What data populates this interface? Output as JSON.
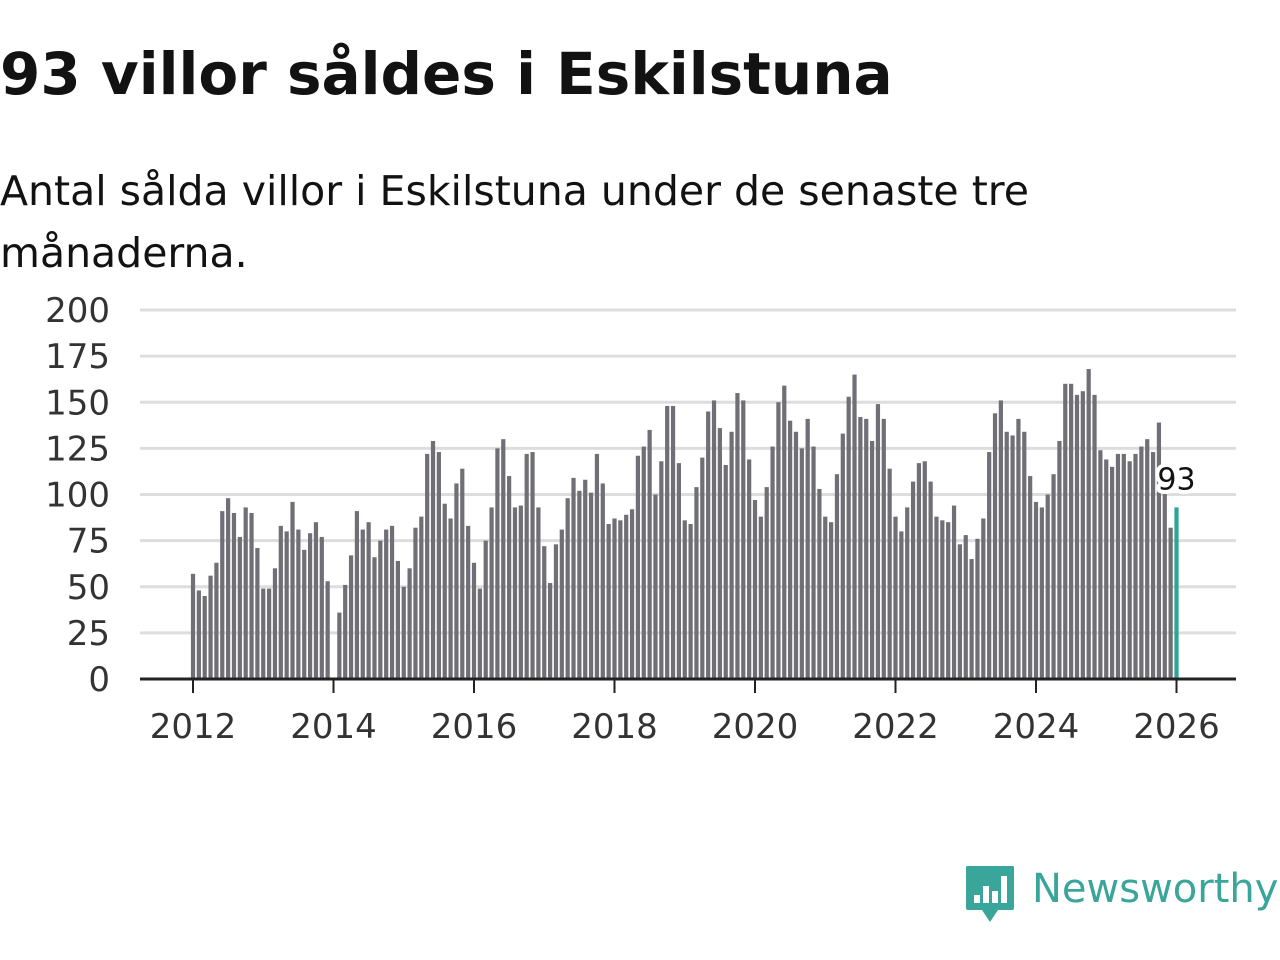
{
  "title": "93 villor såldes i Eskilstuna",
  "subtitle": "Antal sålda villor i Eskilstuna under de senaste tre månaderna.",
  "brand": {
    "name": "Newsworthy",
    "icon": "bar-chart-speech-bubble-icon",
    "color": "#3aa59a"
  },
  "colors": {
    "bar": "#706f75",
    "highlight": "#2ea497",
    "grid": "#dddddd",
    "axis": "#222222"
  },
  "chart_data": {
    "type": "bar",
    "title": "93 villor såldes i Eskilstuna",
    "subtitle": "Antal sålda villor i Eskilstuna under de senaste tre månaderna.",
    "xlabel": "",
    "ylabel": "",
    "start": "2012-01",
    "frequency": "monthly",
    "ylim": [
      0,
      200
    ],
    "yticks": [
      "0",
      "25",
      "50",
      "75",
      "100",
      "125",
      "150",
      "175",
      "200"
    ],
    "xticks": [
      "2012",
      "2014",
      "2016",
      "2018",
      "2020",
      "2022",
      "2024",
      "2026"
    ],
    "grid": true,
    "highlight": {
      "label": "93",
      "value": 93,
      "period": "2026-01"
    },
    "values": [
      57,
      48,
      45,
      56,
      63,
      91,
      98,
      90,
      77,
      93,
      90,
      71,
      49,
      49,
      60,
      83,
      80,
      96,
      81,
      70,
      79,
      85,
      77,
      53,
      0,
      36,
      51,
      67,
      91,
      81,
      85,
      66,
      75,
      81,
      83,
      64,
      50,
      60,
      82,
      88,
      122,
      129,
      123,
      95,
      87,
      106,
      114,
      83,
      63,
      49,
      75,
      93,
      125,
      130,
      110,
      93,
      94,
      122,
      123,
      93,
      72,
      52,
      73,
      81,
      98,
      109,
      102,
      108,
      101,
      122,
      106,
      84,
      87,
      86,
      89,
      92,
      121,
      126,
      135,
      100,
      118,
      148,
      148,
      117,
      86,
      84,
      104,
      120,
      145,
      151,
      136,
      116,
      134,
      155,
      151,
      119,
      97,
      88,
      104,
      126,
      150,
      159,
      140,
      134,
      125,
      141,
      126,
      103,
      88,
      85,
      111,
      133,
      153,
      165,
      142,
      141,
      129,
      149,
      141,
      114,
      88,
      80,
      93,
      107,
      117,
      118,
      107,
      88,
      86,
      85,
      94,
      73,
      78,
      65,
      76,
      87,
      123,
      144,
      151,
      134,
      132,
      141,
      134,
      110,
      96,
      93,
      100,
      111,
      129,
      160,
      160,
      154,
      156,
      168,
      154,
      124,
      119,
      115,
      122,
      122,
      118,
      122,
      126,
      130,
      123,
      139,
      101,
      82,
      93
    ]
  }
}
